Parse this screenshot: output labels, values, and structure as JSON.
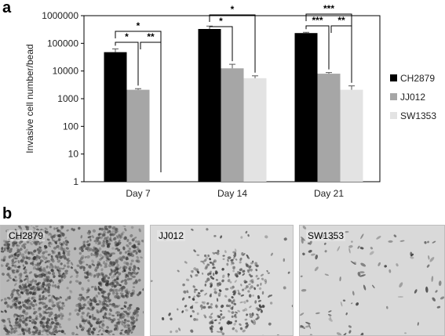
{
  "panels": {
    "a": "a",
    "b": "b"
  },
  "chart_data": {
    "type": "bar",
    "ylabel": "Invasive cell number/bead",
    "yscale": "log",
    "ylim": [
      1,
      1000000
    ],
    "yticks": [
      "1",
      "10",
      "100",
      "1000",
      "10000",
      "100000",
      "1000000"
    ],
    "categories": [
      "Day 7",
      "Day 14",
      "Day 21"
    ],
    "series": [
      {
        "name": "CH2879",
        "color": "#000000",
        "values": [
          48000,
          330000,
          235000
        ],
        "errors": [
          15000,
          90000,
          15000
        ]
      },
      {
        "name": "JJ012",
        "color": "#a6a6a6",
        "values": [
          2100,
          12500,
          8000
        ],
        "errors": [
          200,
          5000,
          800
        ]
      },
      {
        "name": "SW1353",
        "color": "#e3e3e3",
        "values": [
          1,
          5500,
          2100
        ],
        "errors": [
          0,
          1200,
          800
        ]
      }
    ],
    "legend_position": "right",
    "significance": [
      {
        "group": 0,
        "from": 0,
        "to": 2,
        "label": "*"
      },
      {
        "group": 0,
        "from": 0,
        "to": 1,
        "label": "*"
      },
      {
        "group": 0,
        "from": 1,
        "to": 2,
        "label": "**"
      },
      {
        "group": 1,
        "from": 0,
        "to": 2,
        "label": "*"
      },
      {
        "group": 1,
        "from": 0,
        "to": 1,
        "label": "*"
      },
      {
        "group": 2,
        "from": 0,
        "to": 1,
        "label": "***"
      },
      {
        "group": 2,
        "from": 0,
        "to": 2,
        "label": "***"
      },
      {
        "group": 2,
        "from": 1,
        "to": 2,
        "label": "**"
      }
    ]
  },
  "micrographs": [
    {
      "label": "CH2879",
      "density": "very high"
    },
    {
      "label": "JJ012",
      "density": "medium"
    },
    {
      "label": "SW1353",
      "density": "low"
    }
  ]
}
